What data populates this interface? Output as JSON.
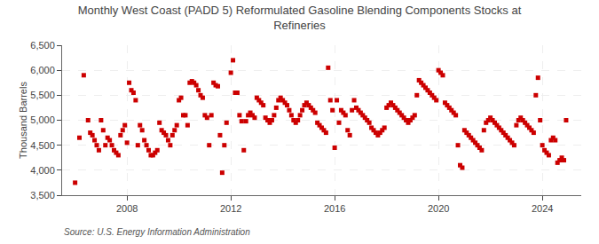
{
  "chart_data": {
    "type": "scatter",
    "title": "Monthly West Coast (PADD 5) Reformulated Gasoline Blending Components Stocks at\nRefineries",
    "ylabel": "Thousand Barrels",
    "annotation": "Source: U.S. Energy Information Administration",
    "color": "#cc0000",
    "marker": "square",
    "grid": true,
    "xlim": [
      2005.5,
      2025.5
    ],
    "xticks": [
      2008,
      2012,
      2016,
      2020,
      2024
    ],
    "ylim": [
      3500,
      6500
    ],
    "yticks": [
      {
        "value": 3500,
        "label": "3,500"
      },
      {
        "value": 4000,
        "label": "4,000"
      },
      {
        "value": 4500,
        "label": "4,500"
      },
      {
        "value": 5000,
        "label": "5,000"
      },
      {
        "value": 5500,
        "label": "5,500"
      },
      {
        "value": 6000,
        "label": "6,000"
      },
      {
        "value": 6500,
        "label": "6,500"
      }
    ],
    "x": [
      2006,
      2006.1666666666667,
      2006.3333333333333,
      2006.5,
      2006.5833333333333,
      2006.6666666666667,
      2006.75,
      2006.8333333333333,
      2006.9166666666667,
      2007,
      2007.0833333333333,
      2007.1666666666667,
      2007.25,
      2007.3333333333333,
      2007.4166666666667,
      2007.5,
      2007.5833333333333,
      2007.6666666666667,
      2007.75,
      2007.8333333333333,
      2007.9166666666667,
      2008,
      2008.0833333333333,
      2008.1666666666667,
      2008.25,
      2008.3333333333333,
      2008.4166666666667,
      2008.5,
      2008.5833333333333,
      2008.6666666666667,
      2008.75,
      2008.8333333333333,
      2008.9166666666667,
      2009,
      2009.0833333333333,
      2009.1666666666667,
      2009.25,
      2009.3333333333333,
      2009.4166666666667,
      2009.5,
      2009.5833333333333,
      2009.6666666666667,
      2009.75,
      2009.8333333333333,
      2009.9166666666667,
      2010,
      2010.0833333333333,
      2010.1666666666667,
      2010.25,
      2010.3333333333333,
      2010.4166666666667,
      2010.5,
      2010.5833333333333,
      2010.6666666666667,
      2010.75,
      2010.8333333333333,
      2010.9166666666667,
      2011,
      2011.0833333333333,
      2011.1666666666667,
      2011.25,
      2011.3333333333333,
      2011.4166666666667,
      2011.5,
      2011.5833333333333,
      2011.6666666666667,
      2011.75,
      2011.8333333333333,
      2012,
      2012.0833333333333,
      2012.1666666666667,
      2012.25,
      2012.3333333333333,
      2012.4166666666667,
      2012.5,
      2012.5833333333333,
      2012.6666666666667,
      2012.75,
      2012.8333333333333,
      2012.9166666666667,
      2013,
      2013.0833333333333,
      2013.1666666666667,
      2013.25,
      2013.3333333333333,
      2013.4166666666667,
      2013.5,
      2013.5833333333333,
      2013.6666666666667,
      2013.75,
      2013.8333333333333,
      2013.9166666666667,
      2014,
      2014.0833333333333,
      2014.1666666666667,
      2014.25,
      2014.3333333333333,
      2014.4166666666667,
      2014.5,
      2014.5833333333333,
      2014.6666666666667,
      2014.75,
      2014.8333333333333,
      2014.9166666666667,
      2015,
      2015.0833333333333,
      2015.1666666666667,
      2015.25,
      2015.3333333333333,
      2015.4166666666667,
      2015.5,
      2015.5833333333333,
      2015.6666666666667,
      2015.75,
      2015.8333333333333,
      2015.9166666666667,
      2016,
      2016.0833333333333,
      2016.1666666666667,
      2016.25,
      2016.3333333333333,
      2016.4166666666667,
      2016.5,
      2016.5833333333333,
      2016.6666666666667,
      2016.75,
      2016.8333333333333,
      2016.9166666666667,
      2017,
      2017.0833333333333,
      2017.1666666666667,
      2017.25,
      2017.3333333333333,
      2017.4166666666667,
      2017.5,
      2017.5833333333333,
      2017.6666666666667,
      2017.75,
      2017.8333333333333,
      2017.9166666666667,
      2018,
      2018.0833333333333,
      2018.1666666666667,
      2018.25,
      2018.3333333333333,
      2018.4166666666667,
      2018.5,
      2018.5833333333333,
      2018.6666666666667,
      2018.75,
      2018.8333333333333,
      2018.9166666666667,
      2019,
      2019.0833333333333,
      2019.1666666666667,
      2019.25,
      2019.3333333333333,
      2019.4166666666667,
      2019.5,
      2019.5833333333333,
      2019.6666666666667,
      2019.75,
      2019.8333333333333,
      2019.9166666666667,
      2020,
      2020.0833333333333,
      2020.1666666666667,
      2020.25,
      2020.3333333333333,
      2020.4166666666667,
      2020.5,
      2020.5833333333333,
      2020.6666666666667,
      2020.75,
      2020.8333333333333,
      2020.9166666666667,
      2021,
      2021.0833333333333,
      2021.1666666666667,
      2021.25,
      2021.3333333333333,
      2021.4166666666667,
      2021.5,
      2021.5833333333333,
      2021.6666666666667,
      2021.75,
      2021.8333333333333,
      2021.9166666666667,
      2022,
      2022.0833333333333,
      2022.1666666666667,
      2022.25,
      2022.3333333333333,
      2022.4166666666667,
      2022.5,
      2022.5833333333333,
      2022.6666666666667,
      2022.75,
      2022.8333333333333,
      2022.9166666666667,
      2023,
      2023.0833333333333,
      2023.1666666666667,
      2023.25,
      2023.3333333333333,
      2023.4166666666667,
      2023.5,
      2023.5833333333333,
      2023.6666666666667,
      2023.75,
      2023.8333333333333,
      2023.9166666666667,
      2024,
      2024.0833333333333,
      2024.1666666666667,
      2024.25,
      2024.3333333333333,
      2024.4166666666667,
      2024.5,
      2024.5833333333333,
      2024.6666666666667,
      2024.75,
      2024.8333333333333,
      2024.9166666666667
    ],
    "values": [
      3750,
      4650,
      5900,
      5000,
      4750,
      4700,
      4600,
      4500,
      4400,
      5000,
      4800,
      4500,
      4650,
      4600,
      4500,
      4400,
      4350,
      4300,
      4700,
      4800,
      4900,
      4550,
      5750,
      5600,
      5550,
      5400,
      4500,
      4900,
      4800,
      4600,
      4500,
      4400,
      4300,
      4300,
      4350,
      4400,
      4950,
      4800,
      4750,
      4700,
      4600,
      4500,
      4700,
      4800,
      4900,
      5400,
      5450,
      5100,
      5100,
      4900,
      5750,
      5780,
      5750,
      5700,
      5600,
      5500,
      5450,
      5100,
      5050,
      4500,
      5100,
      5750,
      5700,
      5680,
      4700,
      3950,
      4500,
      4950,
      5950,
      6200,
      5550,
      5550,
      5100,
      4980,
      4400,
      4980,
      5100,
      5150,
      5100,
      5050,
      5450,
      5400,
      5350,
      5300,
      5050,
      5000,
      4950,
      5000,
      5100,
      5250,
      5400,
      5450,
      5400,
      5350,
      5300,
      5200,
      5100,
      5000,
      4950,
      5000,
      5100,
      5200,
      5300,
      5350,
      5300,
      5250,
      5200,
      5150,
      4950,
      4900,
      4850,
      4800,
      4750,
      6050,
      5400,
      5200,
      4450,
      5400,
      4950,
      5200,
      5150,
      5100,
      4800,
      4700,
      5200,
      5400,
      5250,
      5200,
      5150,
      5100,
      5050,
      5000,
      4950,
      4850,
      4800,
      4750,
      4700,
      4750,
      4800,
      4850,
      5250,
      5300,
      5350,
      5300,
      5250,
      5200,
      5150,
      5100,
      5050,
      5000,
      4950,
      5000,
      5050,
      5100,
      5500,
      5800,
      5750,
      5700,
      5650,
      5600,
      5550,
      5500,
      5450,
      5400,
      6000,
      5950,
      5900,
      5350,
      5300,
      5250,
      5200,
      5150,
      5100,
      4500,
      4100,
      4050,
      4800,
      4750,
      4700,
      4650,
      4600,
      4550,
      4500,
      4450,
      4400,
      4800,
      4950,
      5000,
      5050,
      5000,
      4950,
      4900,
      4850,
      4800,
      4750,
      4700,
      4650,
      4600,
      4550,
      4500,
      4900,
      5000,
      5050,
      5000,
      4950,
      4900,
      4850,
      4800,
      4750,
      5500,
      5850,
      5000,
      4500,
      4400,
      4350,
      4300,
      4600,
      4650,
      4600,
      4150,
      4200,
      4250,
      4200,
      5000
    ]
  }
}
